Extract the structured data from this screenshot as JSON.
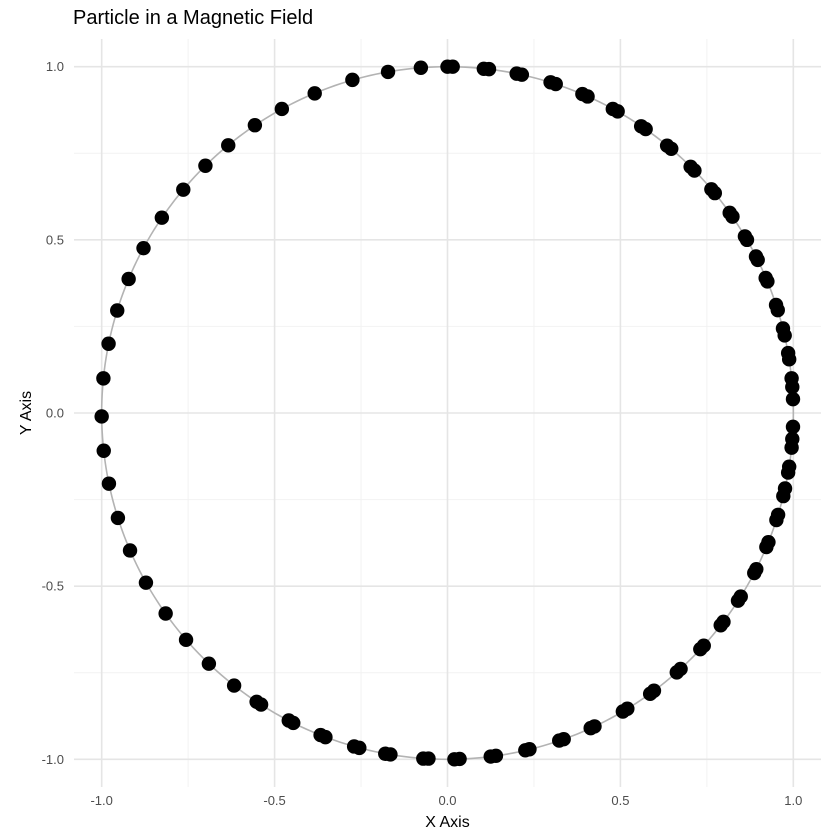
{
  "chart_data": {
    "type": "scatter",
    "title": "Particle in a Magnetic Field",
    "xlabel": "X Axis",
    "ylabel": "Y Axis",
    "xlim": [
      -1.08,
      1.08
    ],
    "ylim": [
      -1.08,
      1.08
    ],
    "x_ticks": [
      -1.0,
      -0.5,
      0.0,
      0.5,
      1.0
    ],
    "y_ticks": [
      -1.0,
      -0.5,
      0.0,
      0.5,
      1.0
    ],
    "x_tick_labels": [
      "-1.0",
      "-0.5",
      "0.0",
      "0.5",
      "1.0"
    ],
    "y_tick_labels": [
      "-1.0",
      "-0.5",
      "0.0",
      "0.5",
      "1.0"
    ],
    "grid": true,
    "legend": "none",
    "path": {
      "shape": "unit circle",
      "color": "#b3b3b3"
    },
    "point_color": "#000000",
    "series": [
      {
        "x": [
          0.0,
          0.015,
          0.105,
          0.12,
          0.2,
          0.215,
          0.298,
          0.313,
          0.39,
          0.405,
          0.478,
          0.492,
          0.56,
          0.573,
          0.635,
          0.647,
          0.703,
          0.714,
          0.763,
          0.773,
          0.816,
          0.824,
          0.86,
          0.866,
          0.892,
          0.897,
          0.92,
          0.925,
          0.95,
          0.955,
          0.97,
          0.975,
          0.985,
          0.988,
          0.995,
          0.997,
          0.999,
          0.999,
          0.997,
          0.995,
          0.988,
          0.985,
          0.976,
          0.971,
          0.956,
          0.951,
          0.928,
          0.922,
          0.893,
          0.887,
          0.848,
          0.84,
          0.798,
          0.79,
          0.741,
          0.731,
          0.674,
          0.663,
          0.597,
          0.586,
          0.52,
          0.507,
          0.425,
          0.414,
          0.336,
          0.323,
          0.237,
          0.225,
          0.14,
          0.125,
          0.035,
          0.02,
          -0.055,
          -0.07,
          -0.165,
          -0.18,
          -0.255,
          -0.27,
          -0.353,
          -0.367,
          -0.446,
          -0.459,
          -0.539,
          -0.552,
          -0.617,
          -0.69,
          -0.756,
          -0.815,
          -0.872,
          -0.918,
          -0.953,
          -0.979,
          -0.994,
          -1.0,
          -0.995,
          -0.98,
          -0.955,
          -0.922,
          -0.879,
          -0.826,
          -0.764,
          -0.7,
          -0.634,
          -0.557,
          -0.479,
          -0.384,
          -0.275,
          -0.172,
          -0.077
        ],
        "y": [
          1.0,
          1.0,
          0.994,
          0.993,
          0.98,
          0.977,
          0.955,
          0.95,
          0.921,
          0.914,
          0.878,
          0.871,
          0.828,
          0.82,
          0.772,
          0.763,
          0.711,
          0.7,
          0.646,
          0.635,
          0.578,
          0.567,
          0.51,
          0.5,
          0.452,
          0.442,
          0.39,
          0.38,
          0.312,
          0.297,
          0.244,
          0.224,
          0.173,
          0.155,
          0.1,
          0.075,
          0.04,
          -0.04,
          -0.075,
          -0.1,
          -0.155,
          -0.172,
          -0.218,
          -0.24,
          -0.294,
          -0.309,
          -0.373,
          -0.387,
          -0.451,
          -0.462,
          -0.53,
          -0.542,
          -0.603,
          -0.613,
          -0.672,
          -0.682,
          -0.739,
          -0.749,
          -0.802,
          -0.811,
          -0.854,
          -0.862,
          -0.905,
          -0.91,
          -0.942,
          -0.946,
          -0.971,
          -0.974,
          -0.99,
          -0.992,
          -0.999,
          -1.0,
          -0.998,
          -0.998,
          -0.986,
          -0.984,
          -0.967,
          -0.963,
          -0.936,
          -0.93,
          -0.895,
          -0.888,
          -0.842,
          -0.834,
          -0.787,
          -0.724,
          -0.655,
          -0.579,
          -0.49,
          -0.397,
          -0.303,
          -0.204,
          -0.109,
          -0.01,
          0.1,
          0.2,
          0.296,
          0.387,
          0.476,
          0.564,
          0.645,
          0.714,
          0.773,
          0.831,
          0.878,
          0.923,
          0.962,
          0.985,
          0.997
        ]
      }
    ]
  }
}
